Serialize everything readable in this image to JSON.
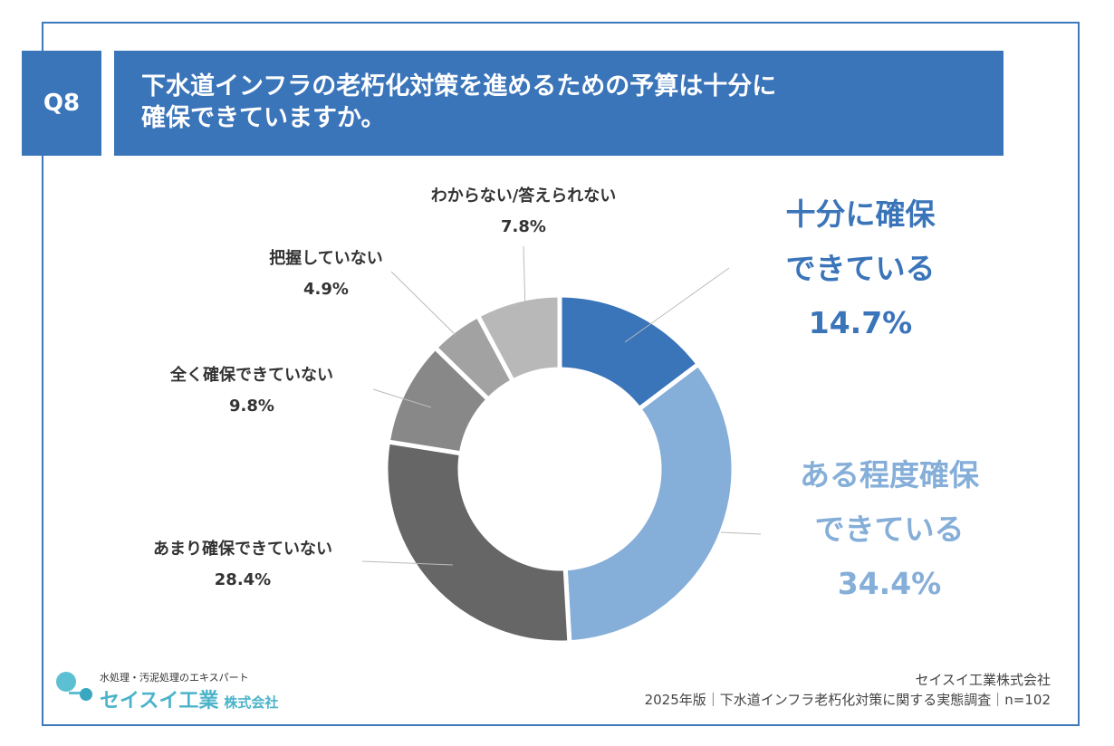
{
  "question": {
    "number": "Q8",
    "title_lines": [
      "下水道インフラの老朽化対策を進めるための予算は十分に",
      "確保できていますか。"
    ]
  },
  "chart_data": {
    "type": "pie",
    "donut": true,
    "start_angle_deg": 0,
    "direction": "clockwise",
    "slices": [
      {
        "label_lines": [
          "十分に確保",
          "できている"
        ],
        "value": 14.7,
        "value_text": "14.7%",
        "color": "#3a74b9",
        "label_color": "#3a74b9"
      },
      {
        "label_lines": [
          "ある程度確保",
          "できている"
        ],
        "value": 34.4,
        "value_text": "34.4%",
        "color": "#85aed8",
        "label_color": "#85aed8"
      },
      {
        "label_lines": [
          "あまり確保できていない"
        ],
        "value": 28.4,
        "value_text": "28.4%",
        "color": "#666666",
        "label_color": "#333333"
      },
      {
        "label_lines": [
          "全く確保できていない"
        ],
        "value": 9.8,
        "value_text": "9.8%",
        "color": "#888888",
        "label_color": "#333333"
      },
      {
        "label_lines": [
          "把握していない"
        ],
        "value": 4.9,
        "value_text": "4.9%",
        "color": "#a2a2a2",
        "label_color": "#333333"
      },
      {
        "label_lines": [
          "わからない/答えられない"
        ],
        "value": 7.8,
        "value_text": "7.8%",
        "color": "#b8b8b8",
        "label_color": "#333333"
      }
    ]
  },
  "logo": {
    "tagline": "水処理・汚泥処理のエキスパート",
    "name": "セイスイ工業",
    "suffix": "株式会社"
  },
  "footer": {
    "company": "セイスイ工業株式会社",
    "survey": "2025年版｜下水道インフラ老朽化対策に関する実態調査｜n=102"
  }
}
